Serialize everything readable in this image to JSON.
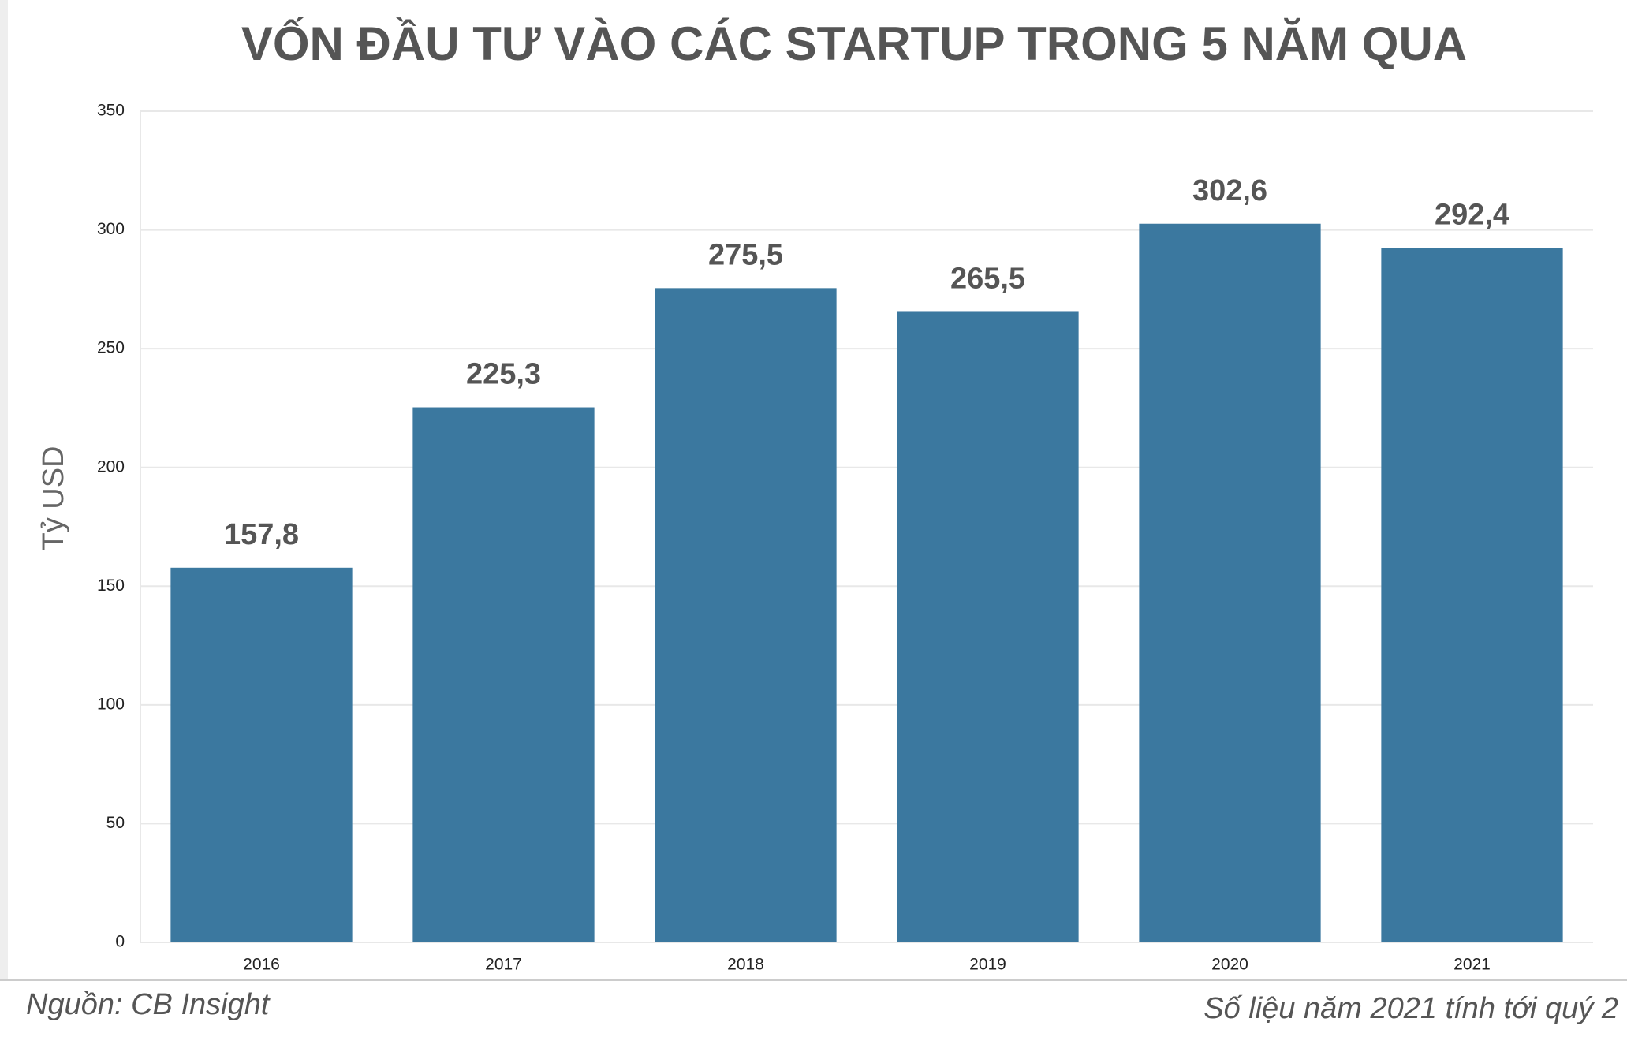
{
  "chart_data": {
    "type": "bar",
    "title": "VỐN ĐẦU TƯ VÀO CÁC STARTUP TRONG 5 NĂM QUA",
    "y_label": "Tỷ USD",
    "categories": [
      "2016",
      "2017",
      "2018",
      "2019",
      "2020",
      "2021"
    ],
    "values": [
      157.8,
      225.3,
      275.5,
      265.5,
      302.6,
      292.4
    ],
    "value_labels": [
      "157,8",
      "225,3",
      "275,5",
      "265,5",
      "302,6",
      "292,4"
    ],
    "color": "#3b789f",
    "ylim": [
      0,
      350
    ],
    "yticks": [
      0,
      50,
      100,
      150,
      200,
      250,
      300,
      350
    ],
    "grid": true,
    "source": "Nguồn: CB Insight",
    "note": "Số liệu năm 2021 tính tới quý 2"
  }
}
